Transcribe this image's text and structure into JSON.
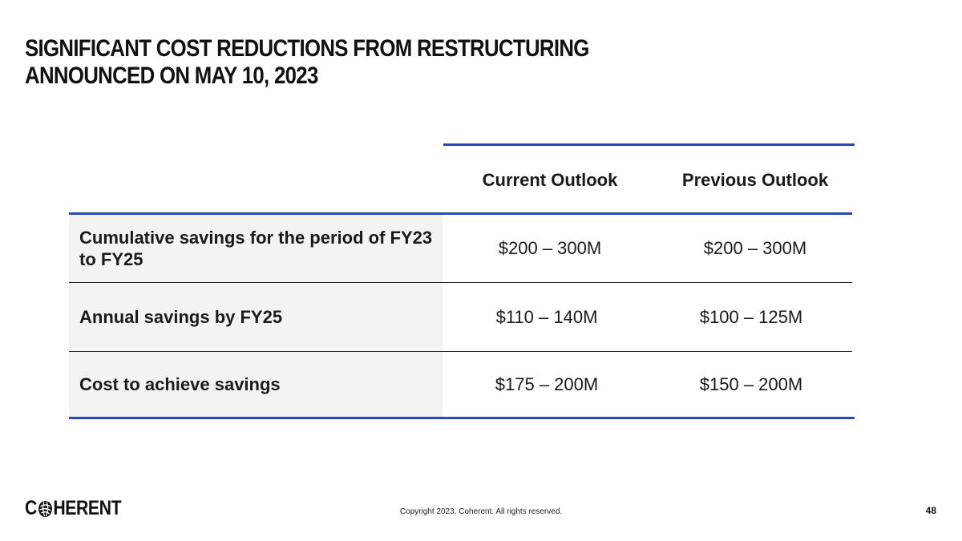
{
  "slide": {
    "title_line1": "SIGNIFICANT COST REDUCTIONS FROM RESTRUCTURING",
    "title_line2": "ANNOUNCED ON MAY 10, 2023"
  },
  "table": {
    "columns": [
      "Current Outlook",
      "Previous Outlook"
    ],
    "rows": [
      {
        "label": "Cumulative savings for the period of FY23 to FY25",
        "current": "$200 – 300M",
        "previous": "$200 – 300M"
      },
      {
        "label": "Annual savings by FY25",
        "current": "$110 – 140M",
        "previous": "$100 – 125M"
      },
      {
        "label": "Cost to achieve savings",
        "current": "$175 – 200M",
        "previous": "$150 – 200M"
      }
    ]
  },
  "footer": {
    "logo_part1": "C",
    "logo_part2": "HERENT",
    "copyright": "Copyright 2023, Coherent. All rights reserved.",
    "page_number": "48"
  },
  "colors": {
    "accent_blue": "#1f47d6",
    "row_label_bg": "#f3f3f3"
  }
}
